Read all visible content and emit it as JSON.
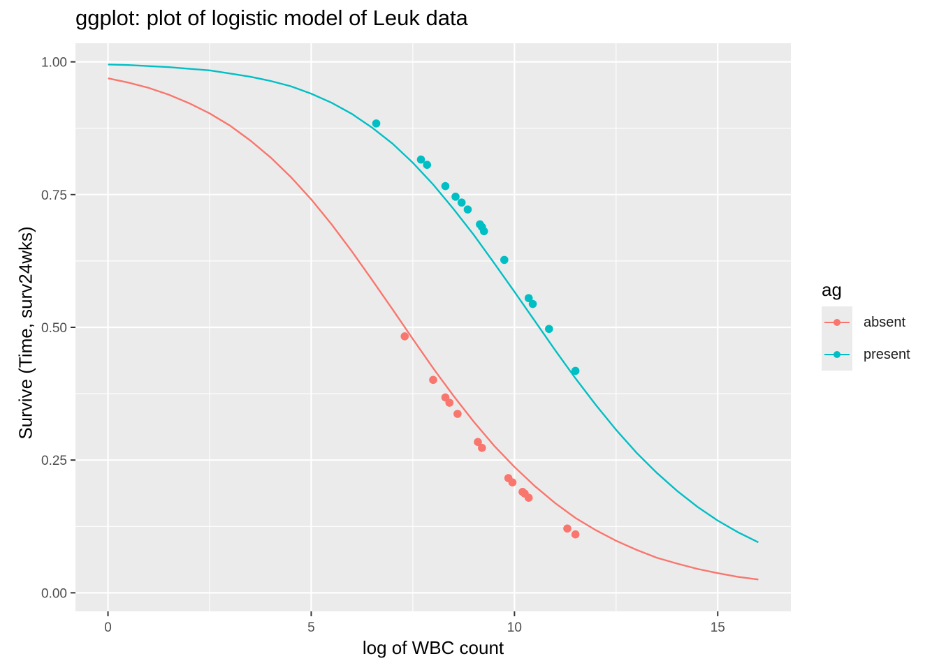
{
  "chart_data": {
    "type": "line",
    "title": "ggplot: plot of logistic model of Leuk data",
    "xlabel": "log of WBC count",
    "ylabel": "Survive (Time, surv24wks)",
    "xlim": [
      -0.8,
      16.8
    ],
    "ylim": [
      -0.035,
      1.035
    ],
    "x_ticks": [
      0,
      5,
      10,
      15
    ],
    "x_tick_labels": [
      "0",
      "5",
      "10",
      "15"
    ],
    "y_ticks": [
      0,
      0.25,
      0.5,
      0.75,
      1
    ],
    "y_tick_labels": [
      "0.00",
      "0.25",
      "0.50",
      "0.75",
      "1.00"
    ],
    "grid": true,
    "legend": {
      "title": "ag",
      "position": "right"
    },
    "series": [
      {
        "name": "absent",
        "color": "#F8766D",
        "curve": {
          "x": [
            0,
            0.5,
            1,
            1.5,
            2,
            2.5,
            3,
            3.5,
            4,
            4.5,
            5,
            5.5,
            6,
            6.5,
            7,
            7.5,
            8,
            8.5,
            9,
            9.5,
            10,
            10.5,
            11,
            11.5,
            12,
            12.5,
            13,
            13.5,
            14,
            14.5,
            15,
            15.5,
            16
          ],
          "y": [
            0.969,
            0.961,
            0.951,
            0.938,
            0.922,
            0.903,
            0.88,
            0.852,
            0.82,
            0.783,
            0.741,
            0.694,
            0.643,
            0.589,
            0.534,
            0.478,
            0.423,
            0.371,
            0.322,
            0.277,
            0.237,
            0.201,
            0.169,
            0.141,
            0.118,
            0.098,
            0.081,
            0.066,
            0.055,
            0.045,
            0.037,
            0.03,
            0.025
          ]
        },
        "points": {
          "x": [
            7.3,
            8.0,
            8.3,
            8.4,
            8.6,
            9.1,
            9.2,
            9.85,
            9.95,
            10.2,
            10.25,
            10.35,
            11.3,
            11.5
          ],
          "y": [
            0.483,
            0.401,
            0.368,
            0.358,
            0.337,
            0.284,
            0.273,
            0.216,
            0.208,
            0.19,
            0.187,
            0.179,
            0.121,
            0.11
          ]
        }
      },
      {
        "name": "present",
        "color": "#00BFC4",
        "curve": {
          "x": [
            0,
            0.5,
            1,
            1.5,
            2,
            2.5,
            3,
            3.5,
            4,
            4.5,
            5,
            5.5,
            6,
            6.5,
            7,
            7.5,
            8,
            8.5,
            9,
            9.5,
            10,
            10.5,
            11,
            11.5,
            12,
            12.5,
            13,
            13.5,
            14,
            14.5,
            15,
            15.5,
            16
          ],
          "y": [
            0.995,
            0.994,
            0.992,
            0.99,
            0.987,
            0.984,
            0.978,
            0.972,
            0.964,
            0.954,
            0.94,
            0.923,
            0.902,
            0.876,
            0.846,
            0.81,
            0.769,
            0.723,
            0.674,
            0.621,
            0.567,
            0.512,
            0.457,
            0.404,
            0.354,
            0.307,
            0.264,
            0.226,
            0.192,
            0.162,
            0.136,
            0.114,
            0.095
          ]
        },
        "points": {
          "x": [
            6.6,
            7.7,
            7.85,
            8.3,
            8.55,
            8.7,
            8.85,
            9.15,
            9.2,
            9.25,
            9.75,
            10.35,
            10.45,
            10.85,
            11.5
          ],
          "y": [
            0.884,
            0.816,
            0.806,
            0.766,
            0.746,
            0.735,
            0.722,
            0.694,
            0.689,
            0.681,
            0.627,
            0.555,
            0.544,
            0.497,
            0.418
          ]
        }
      }
    ]
  }
}
